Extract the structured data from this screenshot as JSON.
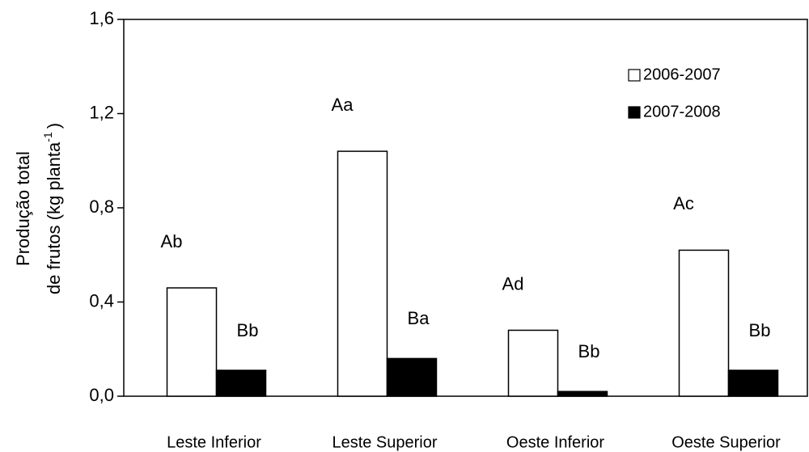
{
  "chart_data": {
    "type": "bar",
    "ylabel": {
      "line1": "Produção total",
      "line2": "de frutos (kg planta",
      "superscript": "-1",
      "close": ")"
    },
    "categories": [
      "Leste Inferior",
      "Leste Superior",
      "Oeste Inferior",
      "Oeste Superior"
    ],
    "series": [
      {
        "name": "2006-2007",
        "color": "#ffffff",
        "values": [
          0.46,
          1.04,
          0.28,
          0.62
        ],
        "letters": [
          "Ab",
          "Aa",
          "Ad",
          "Ac"
        ]
      },
      {
        "name": "2007-2008",
        "color": "#000000",
        "values": [
          0.11,
          0.16,
          0.02,
          0.11
        ],
        "letters": [
          "Bb",
          "Ba",
          "Bb",
          "Bb"
        ]
      }
    ],
    "ylim": [
      0,
      1.6
    ],
    "yticks": [
      {
        "value": 0,
        "label": "0,0"
      },
      {
        "value": 0.4,
        "label": "0,4"
      },
      {
        "value": 0.8,
        "label": "0,8"
      },
      {
        "value": 1.2,
        "label": "1,2"
      },
      {
        "value": 1.6,
        "label": "1,6"
      }
    ],
    "grid": false,
    "legend": "upper right"
  }
}
